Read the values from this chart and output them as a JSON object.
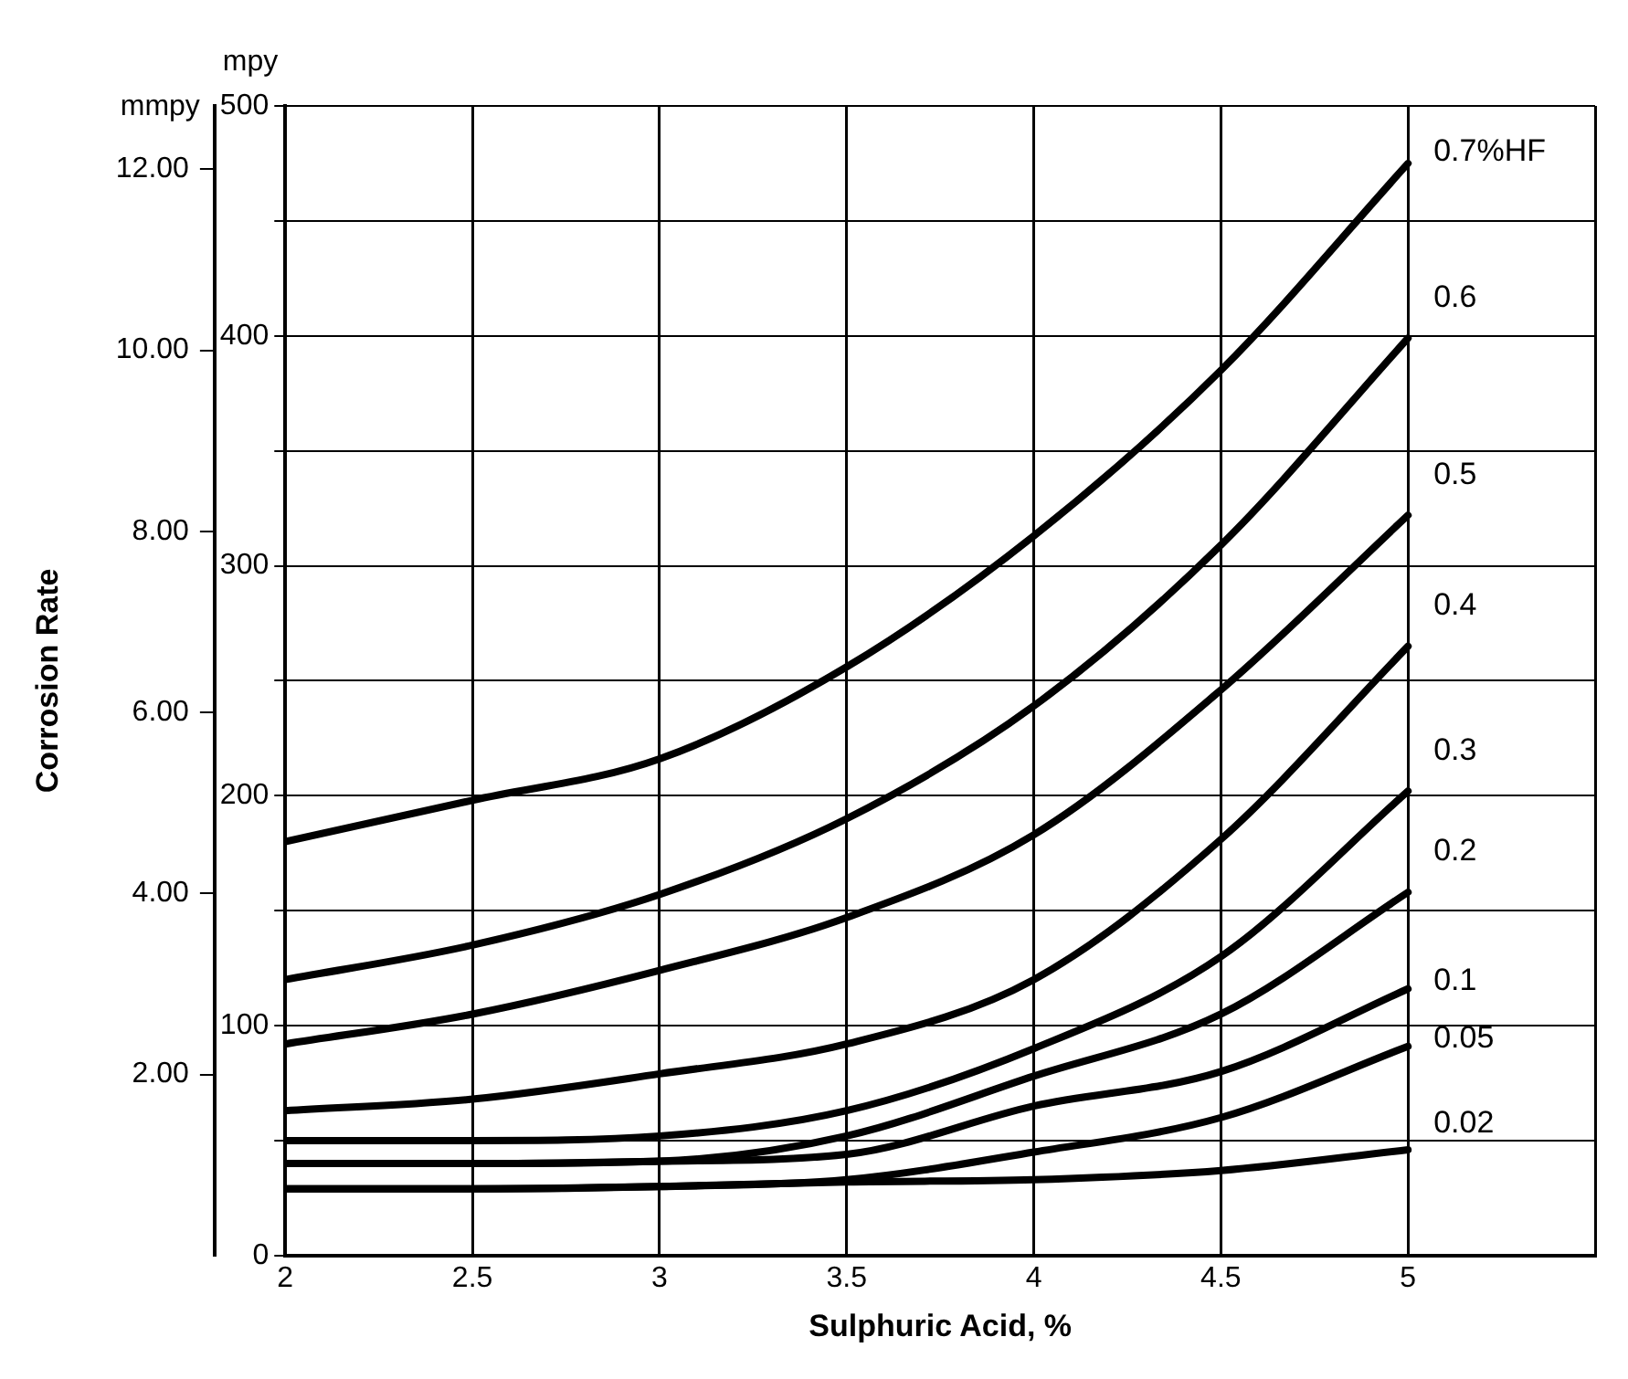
{
  "chart_data": {
    "type": "line",
    "xlabel": "Sulphuric Acid, %",
    "annotations": [
      "mpy",
      "mmpy",
      "Corrosion Rate"
    ],
    "xlim": [
      2,
      5.5
    ],
    "xticks": [
      2,
      2.5,
      3,
      3.5,
      4,
      4.5,
      5
    ],
    "ylim": [
      0,
      500
    ],
    "yticks": [
      0,
      {
        "value": 50,
        "label": null
      },
      100,
      {
        "value": 150,
        "label": null
      },
      200,
      {
        "value": 250,
        "label": null
      },
      300,
      {
        "value": 350,
        "label": null
      },
      400,
      {
        "value": 450,
        "label": null
      },
      500
    ],
    "y2lim": [
      0,
      12.7
    ],
    "y2ticks": [
      {
        "value": 2,
        "label": "2.00"
      },
      {
        "value": 4,
        "label": "4.00"
      },
      {
        "value": 6,
        "label": "6.00"
      },
      {
        "value": 8,
        "label": "8.00"
      },
      {
        "value": 10,
        "label": "10.00"
      },
      {
        "value": 12,
        "label": "12.00"
      }
    ],
    "grid": true,
    "legend": false,
    "x": [
      2,
      2.5,
      3,
      3.5,
      4,
      4.5,
      5
    ],
    "series": [
      {
        "name": "0.7%HF",
        "color": "#000000",
        "values": [
          180,
          198,
          216,
          256,
          313,
          385,
          475
        ]
      },
      {
        "name": "0.6",
        "color": "#000000",
        "values": [
          120,
          135,
          157,
          190,
          239,
          309,
          399
        ]
      },
      {
        "name": "0.5",
        "color": "#000000",
        "values": [
          92,
          105,
          124,
          147,
          183,
          246,
          322
        ]
      },
      {
        "name": "0.4",
        "color": "#000000",
        "values": [
          63,
          68,
          79,
          92,
          120,
          181,
          265
        ]
      },
      {
        "name": "0.3",
        "color": "#000000",
        "values": [
          50,
          50,
          52,
          63,
          90,
          130,
          202
        ]
      },
      {
        "name": "0.2",
        "color": "#000000",
        "values": [
          40,
          40,
          41,
          52,
          78,
          105,
          158
        ]
      },
      {
        "name": "0.1",
        "color": "#000000",
        "values": [
          40,
          40,
          41,
          44,
          65,
          80,
          116
        ]
      },
      {
        "name": "0.05",
        "color": "#000000",
        "values": [
          29,
          29,
          30,
          33,
          45,
          60,
          91
        ]
      },
      {
        "name": "0.02",
        "color": "#000000",
        "values": [
          29,
          29,
          30,
          32,
          33,
          37,
          46
        ]
      }
    ]
  }
}
